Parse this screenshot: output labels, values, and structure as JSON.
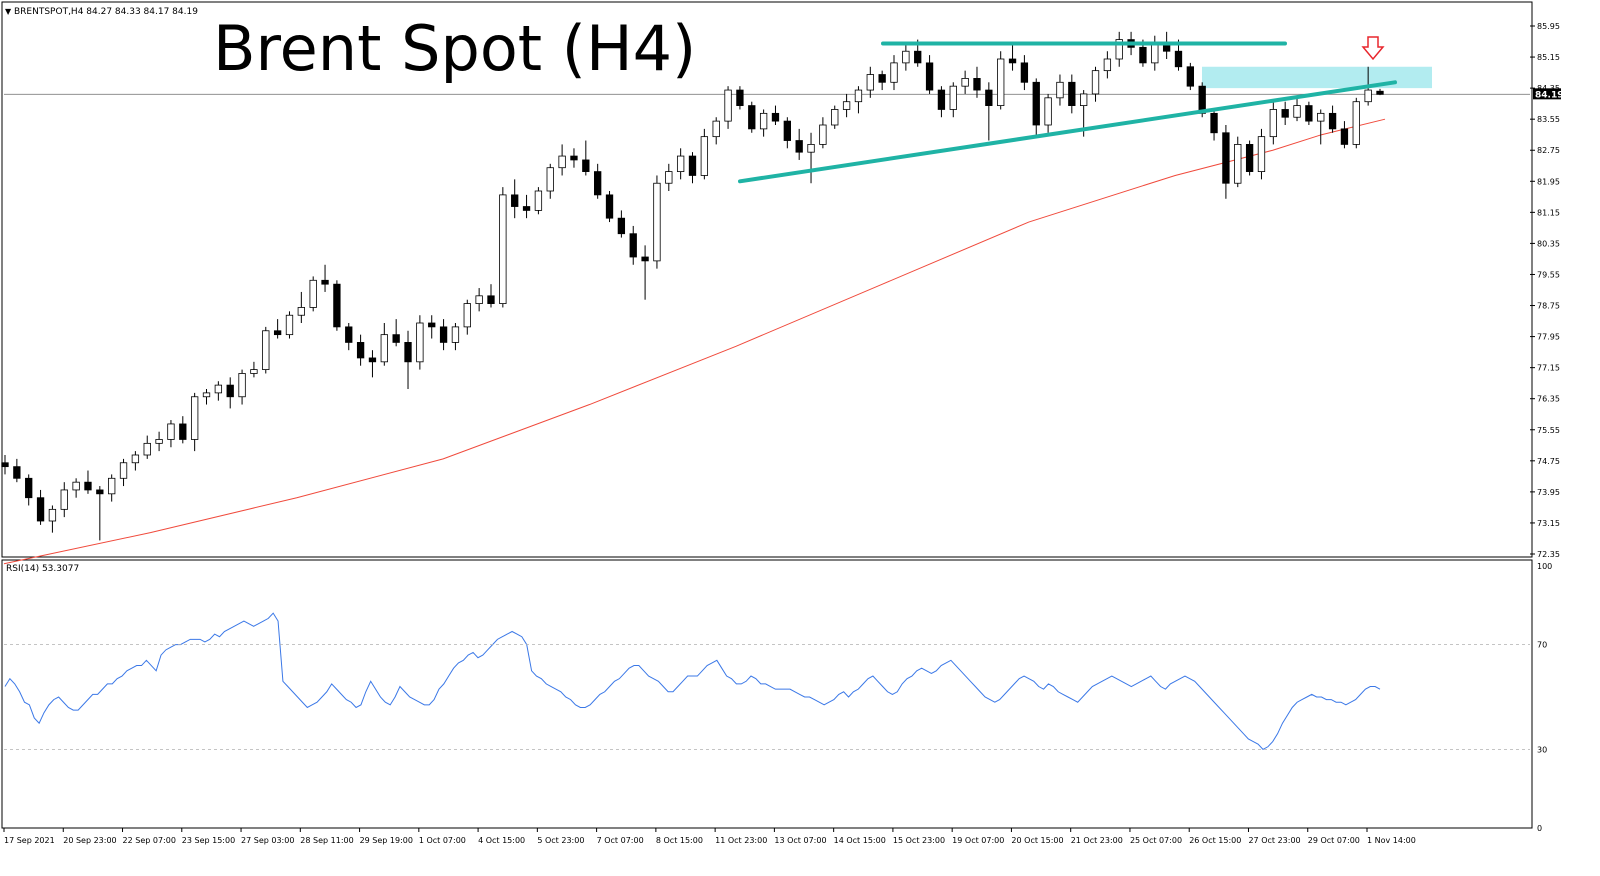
{
  "header": {
    "symbol_info": "BRENTSPOT,H4  84.27 84.33 84.17 84.19",
    "big_title": "Brent Spot (H4)",
    "rsi_label": "RSI(14) 53.3077"
  },
  "price_axis": {
    "ticks": [
      "85.95",
      "85.15",
      "84.35",
      "83.55",
      "82.75",
      "81.95",
      "81.15",
      "80.35",
      "79.55",
      "78.75",
      "77.95",
      "77.15",
      "76.35",
      "75.55",
      "74.75",
      "73.95",
      "73.15",
      "72.35"
    ],
    "current_price": "84.19",
    "current_price_value": 84.19
  },
  "rsi_axis": {
    "ticks": [
      "100",
      "70",
      "30",
      "0"
    ]
  },
  "time_axis": {
    "labels": [
      "17 Sep 2021",
      "20 Sep 23:00",
      "22 Sep 07:00",
      "23 Sep 15:00",
      "27 Sep 03:00",
      "28 Sep 11:00",
      "29 Sep 19:00",
      "1 Oct 07:00",
      "4 Oct 15:00",
      "5 Oct 23:00",
      "7 Oct 07:00",
      "8 Oct 15:00",
      "11 Oct 23:00",
      "13 Oct 07:00",
      "14 Oct 15:00",
      "15 Oct 23:00",
      "19 Oct 07:00",
      "20 Oct 15:00",
      "21 Oct 23:00",
      "25 Oct 07:00",
      "26 Oct 15:00",
      "27 Oct 23:00",
      "29 Oct 07:00",
      "1 Nov 14:00"
    ]
  },
  "colors": {
    "bull": "#ffffff",
    "bear": "#000000",
    "ma": "#f04a3c",
    "trendline": "#1fb3a5",
    "resistance_zone": "#7fdfe6",
    "arrow": "#e8262d",
    "rsi": "#3b78e7"
  },
  "chart_data": {
    "type": "candlestick",
    "title": "Brent Spot (H4)",
    "symbol": "BRENTSPOT",
    "timeframe": "H4",
    "ohlc_last": {
      "open": 84.27,
      "high": 84.33,
      "low": 84.17,
      "close": 84.19
    },
    "price_range": [
      72.3,
      86.45
    ],
    "moving_average_approx": [
      [
        0,
        72.1
      ],
      [
        30,
        72.9
      ],
      [
        60,
        73.8
      ],
      [
        90,
        74.8
      ],
      [
        120,
        76.2
      ],
      [
        150,
        77.7
      ],
      [
        180,
        79.3
      ],
      [
        210,
        80.9
      ],
      [
        240,
        82.1
      ],
      [
        260,
        82.75
      ],
      [
        270,
        83.15
      ],
      [
        283,
        83.55
      ]
    ],
    "candles_approx": [
      [
        74.7,
        74.9,
        74.4,
        74.6
      ],
      [
        74.6,
        74.8,
        74.2,
        74.3
      ],
      [
        74.3,
        74.4,
        73.6,
        73.8
      ],
      [
        73.8,
        74.0,
        73.1,
        73.2
      ],
      [
        73.2,
        73.6,
        72.9,
        73.5
      ],
      [
        73.5,
        74.2,
        73.3,
        74.0
      ],
      [
        74.0,
        74.3,
        73.8,
        74.2
      ],
      [
        74.2,
        74.5,
        73.9,
        74.0
      ],
      [
        74.0,
        74.1,
        72.7,
        73.9
      ],
      [
        73.9,
        74.4,
        73.7,
        74.3
      ],
      [
        74.3,
        74.8,
        74.1,
        74.7
      ],
      [
        74.7,
        75.0,
        74.5,
        74.9
      ],
      [
        74.9,
        75.4,
        74.8,
        75.2
      ],
      [
        75.2,
        75.5,
        75.0,
        75.3
      ],
      [
        75.3,
        75.8,
        75.1,
        75.7
      ],
      [
        75.7,
        75.9,
        75.2,
        75.3
      ],
      [
        75.3,
        76.5,
        75.0,
        76.4
      ],
      [
        76.4,
        76.6,
        76.2,
        76.5
      ],
      [
        76.5,
        76.8,
        76.3,
        76.7
      ],
      [
        76.7,
        76.9,
        76.1,
        76.4
      ],
      [
        76.4,
        77.1,
        76.2,
        77.0
      ],
      [
        77.0,
        77.3,
        76.9,
        77.1
      ],
      [
        77.1,
        78.2,
        77.0,
        78.1
      ],
      [
        78.1,
        78.4,
        77.9,
        78.0
      ],
      [
        78.0,
        78.6,
        77.9,
        78.5
      ],
      [
        78.5,
        79.1,
        78.3,
        78.7
      ],
      [
        78.7,
        79.5,
        78.6,
        79.4
      ],
      [
        79.4,
        79.8,
        79.1,
        79.3
      ],
      [
        79.3,
        79.4,
        78.1,
        78.2
      ],
      [
        78.2,
        78.3,
        77.6,
        77.8
      ],
      [
        77.8,
        78.0,
        77.2,
        77.4
      ],
      [
        77.4,
        77.6,
        76.9,
        77.3
      ],
      [
        77.3,
        78.3,
        77.2,
        78.0
      ],
      [
        78.0,
        78.4,
        77.7,
        77.8
      ],
      [
        77.8,
        78.1,
        76.6,
        77.3
      ],
      [
        77.3,
        78.5,
        77.1,
        78.3
      ],
      [
        78.3,
        78.5,
        77.9,
        78.2
      ],
      [
        78.2,
        78.4,
        77.6,
        77.8
      ],
      [
        77.8,
        78.3,
        77.6,
        78.2
      ],
      [
        78.2,
        78.9,
        78.0,
        78.8
      ],
      [
        78.8,
        79.2,
        78.6,
        79.0
      ],
      [
        79.0,
        79.3,
        78.7,
        78.8
      ],
      [
        78.8,
        81.8,
        78.7,
        81.6
      ],
      [
        81.6,
        82.0,
        81.0,
        81.3
      ],
      [
        81.3,
        81.6,
        81.0,
        81.2
      ],
      [
        81.2,
        81.8,
        81.1,
        81.7
      ],
      [
        81.7,
        82.4,
        81.5,
        82.3
      ],
      [
        82.3,
        82.9,
        82.1,
        82.6
      ],
      [
        82.6,
        82.8,
        82.3,
        82.5
      ],
      [
        82.5,
        83.0,
        82.1,
        82.2
      ],
      [
        82.2,
        82.4,
        81.5,
        81.6
      ],
      [
        81.6,
        81.7,
        80.9,
        81.0
      ],
      [
        81.0,
        81.2,
        80.5,
        80.6
      ],
      [
        80.6,
        80.8,
        79.8,
        80.0
      ],
      [
        80.0,
        80.3,
        78.9,
        79.9
      ],
      [
        79.9,
        82.1,
        79.7,
        81.9
      ],
      [
        81.9,
        82.4,
        81.7,
        82.2
      ],
      [
        82.2,
        82.8,
        82.0,
        82.6
      ],
      [
        82.6,
        82.7,
        81.9,
        82.1
      ],
      [
        82.1,
        83.3,
        82.0,
        83.1
      ],
      [
        83.1,
        83.6,
        82.9,
        83.5
      ],
      [
        83.5,
        84.4,
        83.3,
        84.3
      ],
      [
        84.3,
        84.4,
        83.8,
        83.9
      ],
      [
        83.9,
        84.0,
        83.2,
        83.3
      ],
      [
        83.3,
        83.8,
        83.1,
        83.7
      ],
      [
        83.7,
        83.9,
        83.4,
        83.5
      ],
      [
        83.5,
        83.6,
        82.8,
        83.0
      ],
      [
        83.0,
        83.3,
        82.5,
        82.7
      ],
      [
        82.7,
        83.2,
        81.9,
        82.9
      ],
      [
        82.9,
        83.6,
        82.8,
        83.4
      ],
      [
        83.4,
        83.9,
        83.3,
        83.8
      ],
      [
        83.8,
        84.2,
        83.6,
        84.0
      ],
      [
        84.0,
        84.4,
        83.7,
        84.3
      ],
      [
        84.3,
        84.9,
        84.1,
        84.7
      ],
      [
        84.7,
        84.8,
        84.3,
        84.5
      ],
      [
        84.5,
        85.2,
        84.3,
        85.0
      ],
      [
        85.0,
        85.5,
        84.8,
        85.3
      ],
      [
        85.3,
        85.6,
        84.9,
        85.0
      ],
      [
        85.0,
        85.2,
        84.2,
        84.3
      ],
      [
        84.3,
        84.4,
        83.6,
        83.8
      ],
      [
        83.8,
        84.5,
        83.6,
        84.4
      ],
      [
        84.4,
        84.8,
        84.2,
        84.6
      ],
      [
        84.6,
        84.9,
        84.1,
        84.3
      ],
      [
        84.3,
        84.5,
        83.0,
        83.9
      ],
      [
        83.9,
        85.3,
        83.8,
        85.1
      ],
      [
        85.1,
        85.5,
        84.8,
        85.0
      ],
      [
        85.0,
        85.2,
        84.3,
        84.5
      ],
      [
        84.5,
        84.6,
        83.1,
        83.4
      ],
      [
        83.4,
        84.2,
        83.2,
        84.1
      ],
      [
        84.1,
        84.7,
        83.9,
        84.5
      ],
      [
        84.5,
        84.7,
        83.7,
        83.9
      ],
      [
        83.9,
        84.3,
        83.1,
        84.2
      ],
      [
        84.2,
        84.9,
        84.0,
        84.8
      ],
      [
        84.8,
        85.3,
        84.6,
        85.1
      ],
      [
        85.1,
        85.8,
        84.9,
        85.6
      ],
      [
        85.6,
        85.8,
        85.2,
        85.4
      ],
      [
        85.4,
        85.6,
        84.9,
        85.0
      ],
      [
        85.0,
        85.7,
        84.8,
        85.5
      ],
      [
        85.5,
        85.8,
        85.1,
        85.3
      ],
      [
        85.3,
        85.6,
        84.8,
        84.9
      ],
      [
        84.9,
        85.0,
        84.3,
        84.4
      ],
      [
        84.4,
        84.5,
        83.6,
        83.7
      ],
      [
        83.7,
        83.8,
        83.0,
        83.2
      ],
      [
        83.2,
        83.4,
        81.5,
        81.9
      ],
      [
        81.9,
        83.1,
        81.8,
        82.9
      ],
      [
        82.9,
        83.0,
        82.1,
        82.2
      ],
      [
        82.2,
        83.3,
        82.0,
        83.1
      ],
      [
        83.1,
        84.0,
        82.9,
        83.8
      ],
      [
        83.8,
        84.0,
        83.4,
        83.6
      ],
      [
        83.6,
        84.1,
        83.5,
        83.9
      ],
      [
        83.9,
        84.0,
        83.4,
        83.5
      ],
      [
        83.5,
        83.8,
        82.9,
        83.7
      ],
      [
        83.7,
        83.9,
        83.2,
        83.3
      ],
      [
        83.3,
        83.5,
        82.8,
        82.9
      ],
      [
        82.9,
        84.1,
        82.8,
        84.0
      ],
      [
        84.0,
        84.9,
        83.9,
        84.3
      ],
      [
        84.27,
        84.33,
        84.17,
        84.19
      ]
    ],
    "trendlines": [
      {
        "name": "",
        "from": [
          740,
          81.95
        ],
        "to": [
          1395,
          84.5
        ]
      },
      {
        "name": "",
        "from": [
          883,
          85.5
        ],
        "to": [
          1285,
          85.5
        ]
      }
    ],
    "resistance_zone_price": [
      84.35,
      84.9
    ],
    "rsi": {
      "period": 14,
      "last": 53.3077,
      "levels": [
        70,
        30
      ],
      "range": [
        0,
        100
      ],
      "values": [
        54,
        57,
        55,
        52,
        48,
        47,
        42,
        40,
        44,
        47,
        49,
        50,
        48,
        46,
        45,
        45,
        47,
        49,
        51,
        51,
        53,
        55,
        55,
        57,
        58,
        60,
        61,
        62,
        62,
        64,
        62,
        60,
        66,
        68,
        69,
        70,
        70,
        71,
        72,
        72,
        72,
        71,
        72,
        74,
        73,
        75,
        76,
        77,
        78,
        79,
        78,
        77,
        78,
        79,
        80,
        82,
        79,
        56,
        54,
        52,
        50,
        48,
        46,
        47,
        48,
        50,
        52,
        55,
        53,
        51,
        49,
        48,
        46,
        47,
        52,
        56,
        53,
        50,
        48,
        47,
        50,
        54,
        52,
        50,
        49,
        48,
        47,
        47,
        49,
        53,
        55,
        58,
        61,
        63,
        64,
        66,
        67,
        65,
        66,
        68,
        70,
        72,
        73,
        74,
        75,
        74,
        73,
        70,
        60,
        58,
        57,
        55,
        54,
        53,
        52,
        50,
        49,
        47,
        46,
        46,
        47,
        49,
        51,
        52,
        54,
        56,
        57,
        59,
        61,
        62,
        62,
        60,
        58,
        57,
        56,
        54,
        52,
        52,
        54,
        56,
        58,
        58,
        58,
        60,
        62,
        63,
        64,
        61,
        58,
        57,
        55,
        55,
        56,
        58,
        57,
        55,
        55,
        54,
        53,
        53,
        53,
        53,
        52,
        51,
        50,
        50,
        49,
        48,
        47,
        48,
        49,
        51,
        52,
        50,
        52,
        53,
        55,
        57,
        58,
        56,
        54,
        52,
        51,
        52,
        55,
        57,
        58,
        60,
        61,
        60,
        59,
        60,
        62,
        63,
        64,
        62,
        60,
        58,
        56,
        54,
        52,
        50,
        49,
        48,
        49,
        51,
        53,
        55,
        57,
        58,
        57,
        56,
        54,
        53,
        55,
        54,
        52,
        51,
        50,
        49,
        48,
        50,
        52,
        54,
        55,
        56,
        57,
        58,
        57,
        56,
        55,
        54,
        55,
        56,
        57,
        58,
        56,
        54,
        53,
        55,
        56,
        57,
        58,
        57,
        56,
        54,
        52,
        50,
        48,
        46,
        44,
        42,
        40,
        38,
        36,
        34,
        33,
        32,
        30,
        31,
        33,
        36,
        40,
        43,
        46,
        48,
        49,
        50,
        51,
        50,
        50,
        49,
        49,
        48,
        48,
        47,
        48,
        49,
        51,
        53,
        54,
        54,
        53
      ]
    }
  }
}
